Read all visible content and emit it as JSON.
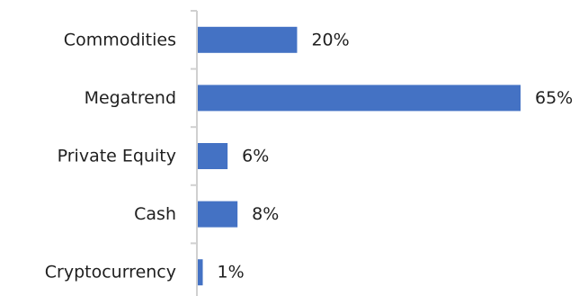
{
  "chart_data": {
    "type": "bar",
    "orientation": "horizontal",
    "categories": [
      "Commodities",
      "Megatrend",
      "Private Equity",
      "Cash",
      "Cryptocurrency"
    ],
    "values": [
      20,
      65,
      6,
      8,
      1
    ],
    "value_labels": [
      "20%",
      "65%",
      "6%",
      "8%",
      "1%"
    ],
    "unit": "%",
    "title": "",
    "xlabel": "",
    "ylabel": "",
    "xlim": [
      0,
      65
    ],
    "grid": false,
    "legend": "none",
    "bar_color": "#4472c4"
  }
}
